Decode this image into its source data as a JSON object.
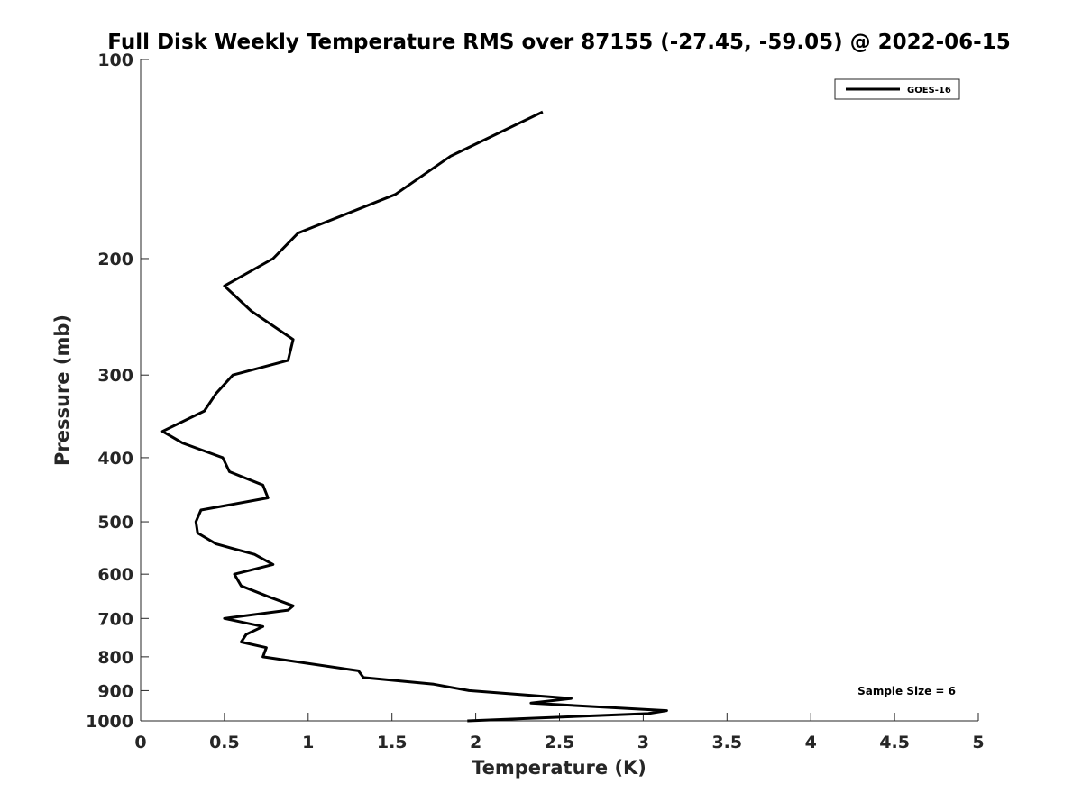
{
  "chart_data": {
    "type": "line",
    "title": "Full Disk Weekly Temperature RMS over 87155 (-27.45, -59.05) @ 2022-06-15",
    "xlabel": "Temperature (K)",
    "ylabel": "Pressure (mb)",
    "xlim": [
      0,
      5
    ],
    "ylim": [
      100,
      1000
    ],
    "y_scale": "log",
    "y_reversed": true,
    "grid": false,
    "legend_position": "top-right",
    "x_ticks": [
      "0",
      "0.5",
      "1",
      "1.5",
      "2",
      "2.5",
      "3",
      "3.5",
      "4",
      "4.5",
      "5"
    ],
    "y_ticks": [
      "100",
      "200",
      "300",
      "400",
      "500",
      "600",
      "700",
      "800",
      "900",
      "1000"
    ],
    "annotation": "Sample Size = 6",
    "series": [
      {
        "name": "GOES-16",
        "color": "#000000",
        "points": [
          [
            2.4,
            120
          ],
          [
            1.85,
            140
          ],
          [
            1.52,
            160
          ],
          [
            0.94,
            183
          ],
          [
            0.79,
            200
          ],
          [
            0.5,
            220
          ],
          [
            0.66,
            240
          ],
          [
            0.91,
            265
          ],
          [
            0.88,
            285
          ],
          [
            0.55,
            300
          ],
          [
            0.45,
            320
          ],
          [
            0.38,
            340
          ],
          [
            0.13,
            365
          ],
          [
            0.25,
            380
          ],
          [
            0.49,
            400
          ],
          [
            0.53,
            420
          ],
          [
            0.73,
            440
          ],
          [
            0.76,
            460
          ],
          [
            0.36,
            480
          ],
          [
            0.33,
            500
          ],
          [
            0.34,
            520
          ],
          [
            0.45,
            540
          ],
          [
            0.68,
            560
          ],
          [
            0.79,
            580
          ],
          [
            0.56,
            600
          ],
          [
            0.6,
            625
          ],
          [
            0.77,
            650
          ],
          [
            0.91,
            670
          ],
          [
            0.88,
            680
          ],
          [
            0.5,
            700
          ],
          [
            0.73,
            720
          ],
          [
            0.63,
            740
          ],
          [
            0.6,
            760
          ],
          [
            0.75,
            775
          ],
          [
            0.73,
            800
          ],
          [
            1.3,
            840
          ],
          [
            1.33,
            860
          ],
          [
            1.75,
            880
          ],
          [
            1.96,
            900
          ],
          [
            2.57,
            925
          ],
          [
            2.33,
            940
          ],
          [
            3.14,
            965
          ],
          [
            3.03,
            975
          ],
          [
            1.95,
            1000
          ]
        ]
      }
    ]
  }
}
